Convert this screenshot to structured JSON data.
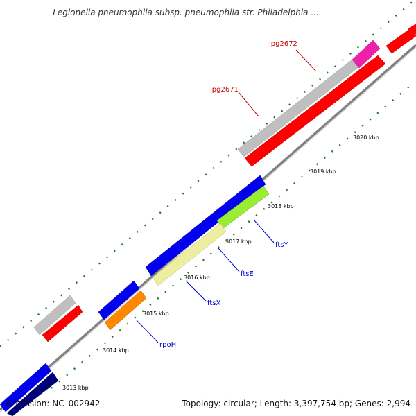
{
  "title": "Legionella pneumophila subsp. pneumophila str. Philadelphia ...",
  "footer": {
    "accession": "Accession: NC_002942",
    "summary": "Topology: circular; Length: 3,397,754 bp; Genes: 2,994"
  },
  "colors": {
    "backbone": "#808080",
    "tick": "#1f7a1f",
    "red": "#ff0000",
    "gray": "#bfbfbf",
    "magenta": "#ee22aa",
    "blue": "#0000ee",
    "navy": "#00007a",
    "lime": "#99ee33",
    "khaki": "#eeeea0",
    "orange": "#ff8800",
    "label_red": "#cc0000",
    "label_blue": "#0000cc"
  },
  "kbp_labels": [
    {
      "text": "3013 kbp"
    },
    {
      "text": "3014 kbp"
    },
    {
      "text": "3015 kbp"
    },
    {
      "text": "3016 kbp"
    },
    {
      "text": "3017 kbp"
    },
    {
      "text": "3018 kbp"
    },
    {
      "text": "3019 kbp"
    },
    {
      "text": "3020 kbp"
    }
  ],
  "genes": [
    {
      "label": "lpg2672"
    },
    {
      "label": "lpg2671"
    },
    {
      "label": "ftsY"
    },
    {
      "label": "ftsE"
    },
    {
      "label": "ftsX"
    },
    {
      "label": "rpoH"
    }
  ]
}
